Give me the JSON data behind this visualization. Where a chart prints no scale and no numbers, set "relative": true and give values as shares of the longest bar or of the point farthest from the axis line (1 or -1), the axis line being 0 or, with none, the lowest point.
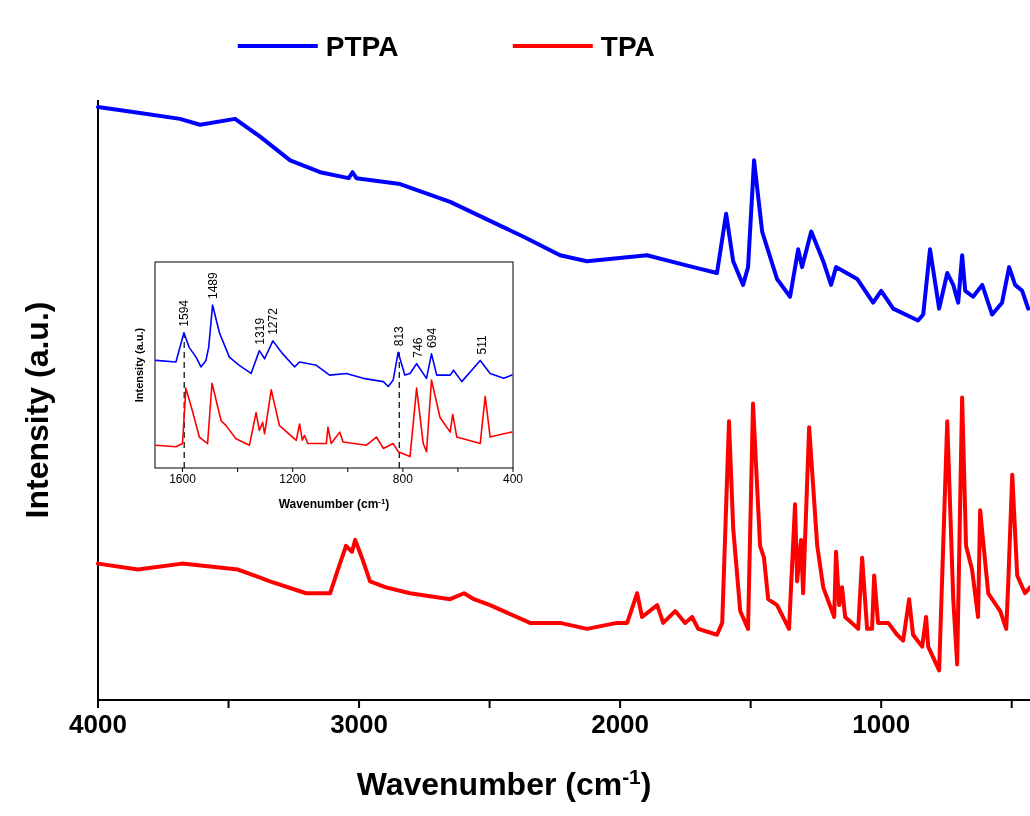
{
  "chart_data": [
    {
      "type": "line",
      "xlabel": "Wavenumber (cm$^{-1}$)",
      "ylabel": "Intensity (a.u.)",
      "relative": true,
      "legend": "top",
      "line_style": "solid",
      "xlim": [
        4000,
        430
      ],
      "xticks": [
        4000,
        {
          "value": 3500,
          "label": null
        },
        3000,
        {
          "value": 2500,
          "label": null
        },
        2000,
        {
          "value": 1500,
          "label": null
        },
        1000,
        {
          "value": 500,
          "label": null
        }
      ],
      "series": [
        {
          "name": "PTPA",
          "color": "#0000ff",
          "x": [
            4000,
            3839,
            3686,
            3609,
            3475,
            3379,
            3264,
            3149,
            3040,
            3025,
            3010,
            2843,
            2651,
            2460,
            2364,
            2230,
            2127,
            1897,
            1720,
            1629,
            1594,
            1567,
            1529,
            1510,
            1487,
            1456,
            1399,
            1349,
            1318,
            1303,
            1268,
            1222,
            1192,
            1173,
            1092,
            1031,
            1000,
            954,
            859,
            839,
            813,
            778,
            747,
            724,
            705,
            690,
            678,
            648,
            613,
            575,
            537,
            510,
            487,
            460,
            437
          ],
          "values": [
            1.0,
            0.99,
            0.98,
            0.97,
            0.98,
            0.95,
            0.91,
            0.89,
            0.88,
            0.89,
            0.88,
            0.87,
            0.84,
            0.8,
            0.78,
            0.75,
            0.74,
            0.75,
            0.73,
            0.72,
            0.82,
            0.74,
            0.7,
            0.73,
            0.91,
            0.79,
            0.71,
            0.68,
            0.76,
            0.73,
            0.79,
            0.74,
            0.7,
            0.73,
            0.71,
            0.67,
            0.69,
            0.66,
            0.64,
            0.65,
            0.76,
            0.66,
            0.72,
            0.7,
            0.67,
            0.75,
            0.69,
            0.68,
            0.7,
            0.65,
            0.67,
            0.73,
            0.7,
            0.69,
            0.66
          ]
        },
        {
          "name": "TPA",
          "color": "#ff0000",
          "x": [
            4000,
            3847,
            3678,
            3464,
            3341,
            3203,
            3111,
            3081,
            3050,
            3027,
            3015,
            2989,
            2958,
            2897,
            2805,
            2651,
            2598,
            2560,
            2498,
            2345,
            2230,
            2127,
            2012,
            1973,
            1935,
            1916,
            1858,
            1835,
            1789,
            1751,
            1724,
            1701,
            1629,
            1609,
            1583,
            1567,
            1540,
            1510,
            1491,
            1464,
            1449,
            1433,
            1399,
            1353,
            1330,
            1322,
            1307,
            1299,
            1276,
            1245,
            1222,
            1180,
            1173,
            1161,
            1150,
            1138,
            1088,
            1073,
            1054,
            1035,
            1027,
            1012,
            973,
            939,
            916,
            893,
            878,
            843,
            828,
            820,
            778,
            747,
            724,
            709,
            690,
            675,
            652,
            629,
            621,
            590,
            544,
            521,
            514,
            498,
            479,
            449,
            430
          ],
          "values": [
            0.23,
            0.22,
            0.23,
            0.22,
            0.2,
            0.18,
            0.18,
            0.22,
            0.26,
            0.25,
            0.27,
            0.24,
            0.2,
            0.19,
            0.18,
            0.17,
            0.18,
            0.17,
            0.16,
            0.13,
            0.13,
            0.12,
            0.13,
            0.13,
            0.18,
            0.14,
            0.16,
            0.13,
            0.15,
            0.13,
            0.14,
            0.12,
            0.11,
            0.13,
            0.47,
            0.29,
            0.15,
            0.12,
            0.5,
            0.26,
            0.24,
            0.17,
            0.16,
            0.12,
            0.33,
            0.2,
            0.27,
            0.18,
            0.46,
            0.26,
            0.19,
            0.14,
            0.25,
            0.16,
            0.19,
            0.14,
            0.12,
            0.24,
            0.12,
            0.12,
            0.21,
            0.13,
            0.13,
            0.11,
            0.1,
            0.17,
            0.11,
            0.09,
            0.14,
            0.09,
            0.05,
            0.47,
            0.17,
            0.06,
            0.51,
            0.26,
            0.22,
            0.14,
            0.32,
            0.18,
            0.15,
            0.12,
            0.19,
            0.38,
            0.21,
            0.18,
            0.19
          ]
        }
      ]
    },
    {
      "type": "line",
      "xlabel": "Wavenumber (cm$^{-1}$)",
      "ylabel": "Intensity (a.u.)",
      "relative": true,
      "line_style": "solid",
      "xlim": [
        1700,
        400
      ],
      "xticks": [
        1600,
        {
          "value": 1400,
          "label": null
        },
        1200,
        {
          "value": 1000,
          "label": null
        },
        800,
        {
          "value": 600,
          "label": null
        },
        400
      ],
      "series": [
        {
          "color": "#0000ff",
          "x": [
            1697,
            1624,
            1595,
            1576,
            1551,
            1533,
            1515,
            1505,
            1491,
            1466,
            1430,
            1394,
            1351,
            1321,
            1302,
            1272,
            1236,
            1193,
            1175,
            1114,
            1066,
            1005,
            944,
            871,
            853,
            835,
            817,
            793,
            774,
            750,
            714,
            696,
            677,
            628,
            616,
            586,
            519,
            483,
            434,
            404
          ],
          "values": [
            0.66,
            0.65,
            0.83,
            0.74,
            0.68,
            0.62,
            0.66,
            0.74,
            1.0,
            0.83,
            0.68,
            0.63,
            0.58,
            0.72,
            0.67,
            0.78,
            0.7,
            0.62,
            0.65,
            0.63,
            0.57,
            0.58,
            0.55,
            0.53,
            0.5,
            0.54,
            0.71,
            0.57,
            0.58,
            0.64,
            0.55,
            0.7,
            0.57,
            0.57,
            0.6,
            0.53,
            0.66,
            0.58,
            0.55,
            0.57
          ]
        },
        {
          "color": "#ff0000",
          "x": [
            1697,
            1624,
            1600,
            1588,
            1564,
            1539,
            1509,
            1493,
            1460,
            1442,
            1406,
            1357,
            1333,
            1321,
            1309,
            1302,
            1278,
            1248,
            1187,
            1175,
            1165,
            1157,
            1145,
            1078,
            1072,
            1060,
            1029,
            1017,
            932,
            896,
            871,
            835,
            817,
            774,
            750,
            726,
            714,
            696,
            665,
            628,
            619,
            604,
            519,
            501,
            483,
            434,
            404
          ],
          "values": [
            0.14,
            0.13,
            0.15,
            0.49,
            0.35,
            0.19,
            0.15,
            0.52,
            0.29,
            0.26,
            0.18,
            0.14,
            0.34,
            0.23,
            0.28,
            0.21,
            0.48,
            0.26,
            0.17,
            0.27,
            0.17,
            0.2,
            0.15,
            0.15,
            0.25,
            0.15,
            0.22,
            0.16,
            0.14,
            0.19,
            0.12,
            0.15,
            0.1,
            0.07,
            0.49,
            0.15,
            0.1,
            0.54,
            0.31,
            0.22,
            0.33,
            0.19,
            0.15,
            0.44,
            0.19,
            0.21,
            0.22
          ]
        }
      ],
      "annotations": [
        {
          "text": "1594",
          "x": 1594,
          "y": 0.83
        },
        {
          "text": "1489",
          "x": 1489,
          "y": 1.0
        },
        {
          "text": "1319",
          "x": 1319,
          "y": 0.72
        },
        {
          "text": "1272",
          "x": 1272,
          "y": 0.78
        },
        {
          "text": "813",
          "x": 813,
          "y": 0.71
        },
        {
          "text": "746",
          "x": 746,
          "y": 0.64
        },
        {
          "text": "694",
          "x": 694,
          "y": 0.7
        },
        {
          "text": "511",
          "x": 511,
          "y": 0.66
        }
      ],
      "ref_lines": [
        {
          "axis": "x",
          "value": 1594,
          "color": "#000000",
          "line_style": "dashed"
        },
        {
          "axis": "x",
          "value": 813,
          "color": "#000000",
          "line_style": "dashed"
        }
      ]
    }
  ]
}
